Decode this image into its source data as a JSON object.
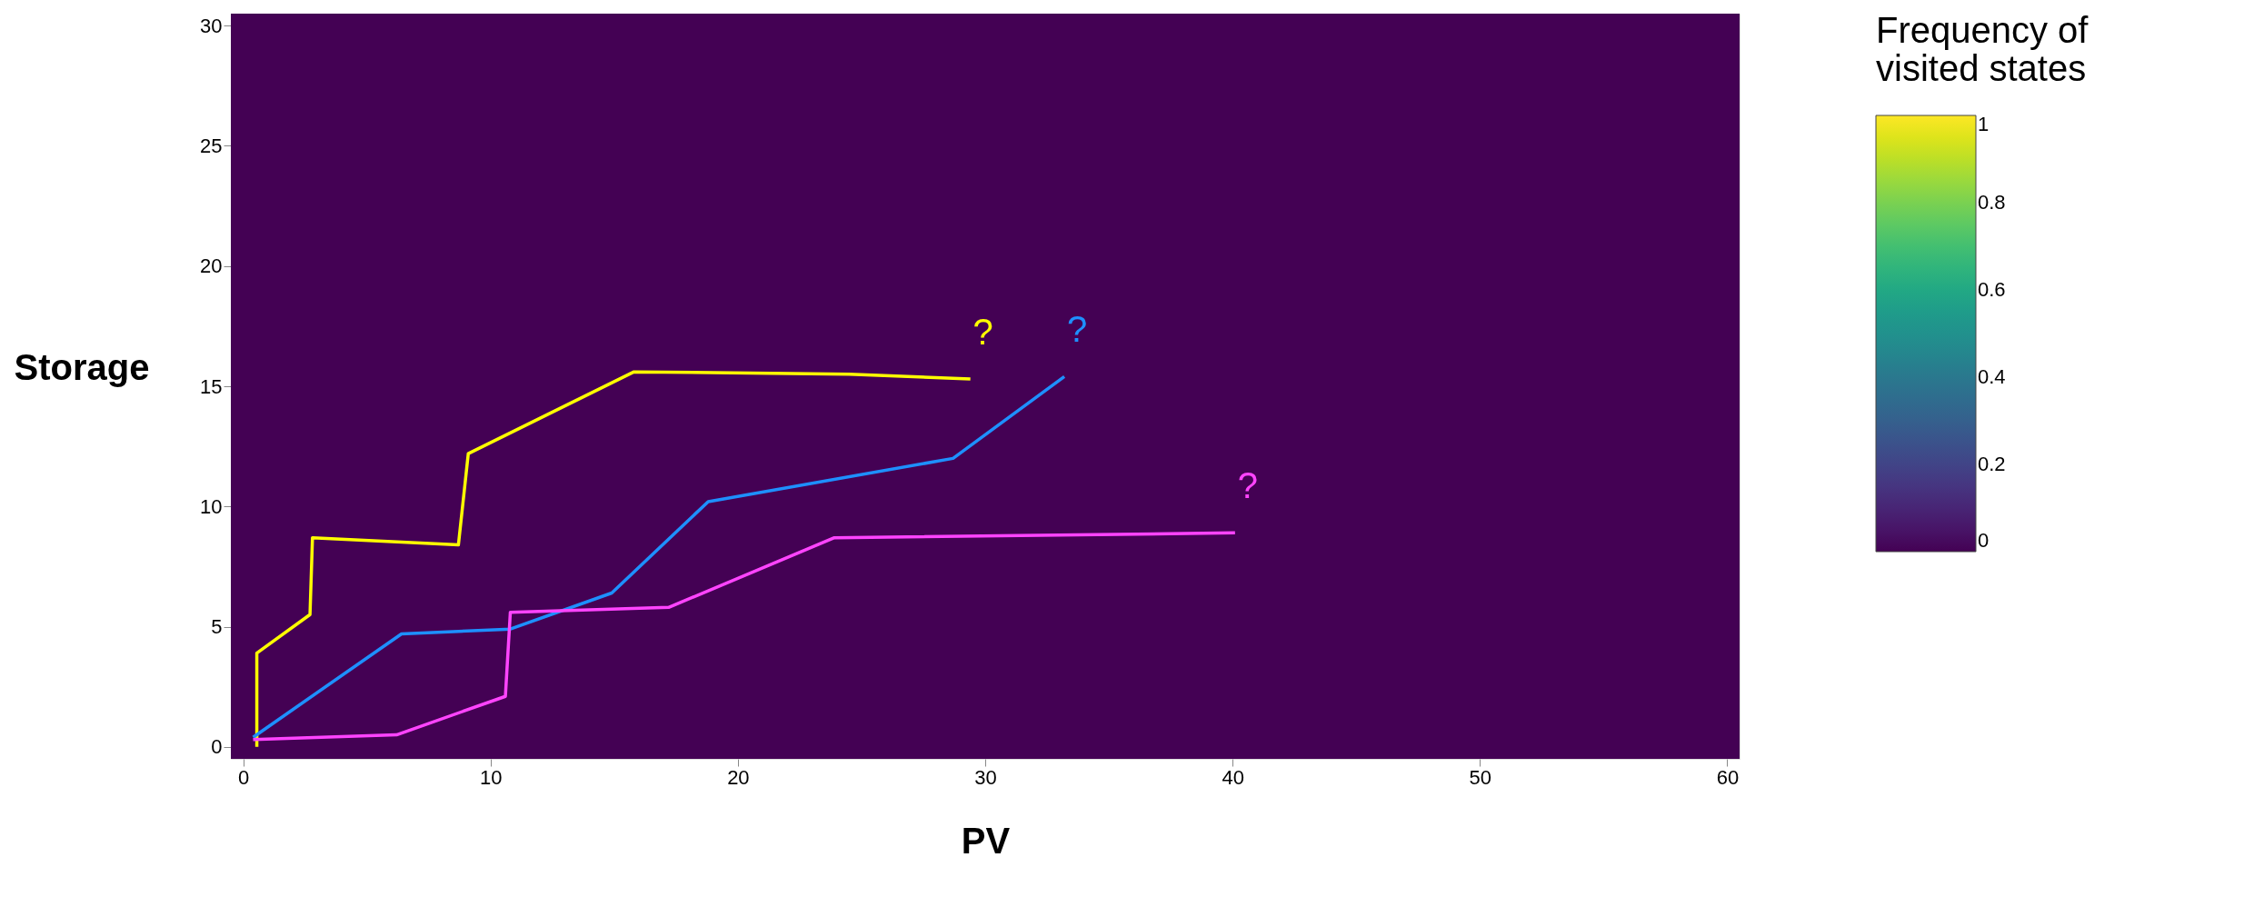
{
  "chart_data": {
    "type": "heatmap",
    "xlabel": "PV",
    "ylabel": "Storage",
    "clabel": "Frequency of visited states",
    "clim": [
      0,
      1
    ],
    "cticks": [
      0,
      0.2,
      0.4,
      0.6,
      0.8,
      1
    ],
    "cells": [
      [
        0
      ]
    ],
    "xlim": [
      -0.5,
      60.5
    ],
    "ylim": [
      -0.5,
      30.5
    ],
    "xticks": [
      0,
      10,
      20,
      30,
      40,
      50,
      60
    ],
    "yticks": [
      0,
      5,
      10,
      15,
      20,
      25,
      30
    ],
    "series": [
      {
        "type": "line",
        "color": "#ffff00",
        "x": [
          0.55,
          0.55,
          2.7,
          2.8,
          8.7,
          9.1,
          15.8,
          24.5,
          29.4
        ],
        "values": [
          0,
          3.9,
          5.5,
          8.7,
          8.4,
          12.2,
          15.6,
          15.5,
          15.3
        ]
      },
      {
        "type": "line",
        "color": "#1e90ff",
        "x": [
          0.4,
          6.4,
          10.8,
          14.9,
          18.8,
          28.7,
          33.2
        ],
        "values": [
          0.4,
          4.7,
          4.9,
          6.4,
          10.2,
          12.0,
          15.4
        ]
      },
      {
        "type": "line",
        "color": "#ff44ff",
        "x": [
          0.4,
          6.2,
          10.6,
          10.8,
          17.2,
          23.9,
          40.1
        ],
        "values": [
          0.3,
          0.5,
          2.1,
          5.6,
          5.8,
          8.7,
          8.9
        ]
      }
    ],
    "annotations": [
      "?",
      "?",
      "?"
    ]
  }
}
